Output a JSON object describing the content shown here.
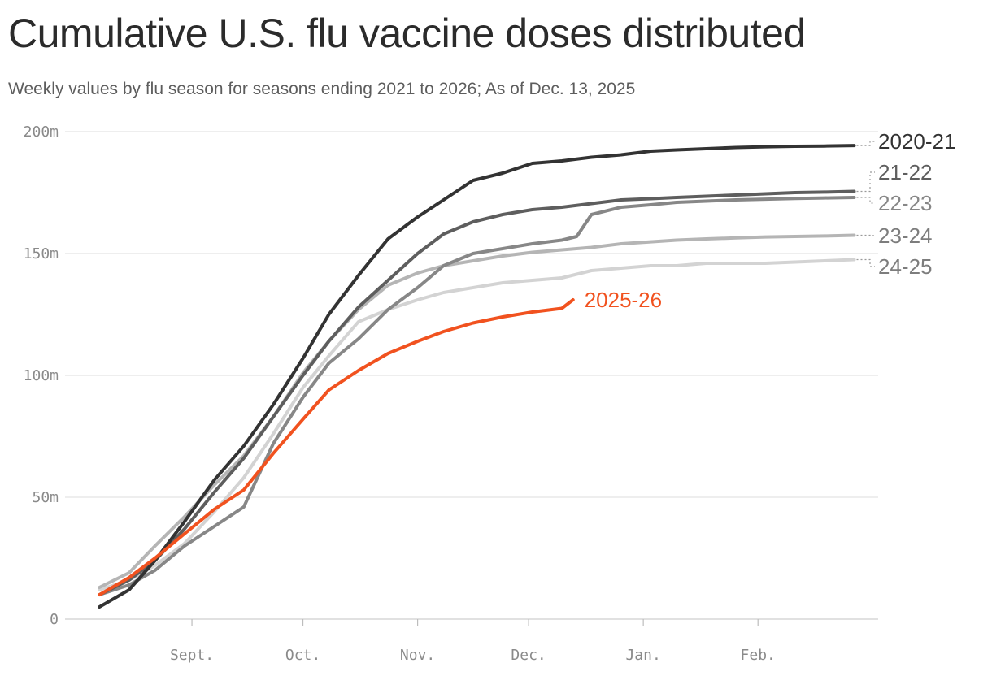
{
  "title": "Cumulative U.S. flu vaccine doses distributed",
  "subtitle": "Weekly values by flu season for seasons ending 2021 to 2026; As of Dec. 13, 2025",
  "chart_data": {
    "type": "line",
    "title": "Cumulative U.S. flu vaccine doses distributed",
    "subtitle": "Weekly values by flu season for seasons ending 2021 to 2026; As of Dec. 13, 2025",
    "xlabel": "",
    "ylabel": "",
    "x_ticks": [
      "Sept.",
      "Oct.",
      "Nov.",
      "Dec.",
      "Jan.",
      "Feb."
    ],
    "x_range": [
      "Aug. 1",
      "Feb. 28"
    ],
    "y_ticks": [
      "0",
      "50m",
      "100m",
      "150m",
      "200m"
    ],
    "y_tick_values": [
      0,
      50,
      100,
      150,
      200
    ],
    "y_unit": "millions of doses",
    "ylim": [
      0,
      200
    ],
    "grid": "horizontal",
    "legend": "direct labels at line ends",
    "series": [
      {
        "name": "24-25",
        "color": "#d3d3d3",
        "x": [
          "Aug. 7",
          "Aug. 15",
          "Aug. 22",
          "Aug. 30",
          "Sept. 7",
          "Sept. 15",
          "Sept. 23",
          "Oct. 1",
          "Oct. 8",
          "Oct. 16",
          "Oct. 24",
          "Nov. 1",
          "Nov. 8",
          "Nov. 16",
          "Nov. 24",
          "Dec. 2",
          "Dec. 10",
          "Dec. 18",
          "Dec. 26",
          "Jan. 3",
          "Jan. 10",
          "Jan. 18",
          "Jan. 26",
          "Feb. 3",
          "Feb. 11",
          "Feb. 19",
          "Feb. 27"
        ],
        "values": [
          12,
          16,
          22,
          31,
          44,
          58,
          76,
          95,
          108,
          122,
          127,
          131,
          134,
          136,
          138,
          139,
          140,
          143,
          144,
          145,
          145,
          146,
          146,
          146,
          146.5,
          147,
          147.5
        ]
      },
      {
        "name": "23-24",
        "color": "#b5b5b5",
        "x": [
          "Aug. 7",
          "Aug. 15",
          "Aug. 22",
          "Aug. 30",
          "Sept. 7",
          "Sept. 15",
          "Sept. 23",
          "Oct. 1",
          "Oct. 8",
          "Oct. 16",
          "Oct. 24",
          "Nov. 1",
          "Nov. 8",
          "Nov. 16",
          "Nov. 24",
          "Dec. 2",
          "Dec. 10",
          "Dec. 18",
          "Dec. 26",
          "Jan. 3",
          "Jan. 10",
          "Jan. 18",
          "Jan. 26",
          "Feb. 3",
          "Feb. 11",
          "Feb. 19",
          "Feb. 27"
        ],
        "values": [
          13,
          19,
          30,
          42,
          55,
          67,
          83,
          101,
          114,
          127,
          137,
          142,
          145,
          147,
          149,
          150.5,
          151.5,
          152.5,
          154,
          154.8,
          155.5,
          156,
          156.4,
          156.8,
          157,
          157.2,
          157.5
        ]
      },
      {
        "name": "22-23",
        "color": "#878787",
        "x": [
          "Aug. 7",
          "Aug. 15",
          "Aug. 22",
          "Aug. 30",
          "Sept. 7",
          "Sept. 15",
          "Sept. 23",
          "Oct. 1",
          "Oct. 8",
          "Oct. 16",
          "Oct. 24",
          "Nov. 1",
          "Nov. 8",
          "Nov. 16",
          "Nov. 24",
          "Dec. 2",
          "Dec. 10",
          "Dec. 14",
          "Dec. 18",
          "Dec. 26",
          "Jan. 3",
          "Jan. 10",
          "Jan. 18",
          "Jan. 26",
          "Feb. 3",
          "Feb. 11",
          "Feb. 19",
          "Feb. 27"
        ],
        "values": [
          10,
          14,
          20,
          30,
          38,
          46,
          72,
          91,
          105,
          115,
          127,
          136,
          145,
          150,
          152,
          154,
          155.5,
          157,
          166,
          169,
          170,
          171,
          171.5,
          172,
          172.3,
          172.6,
          172.8,
          173
        ]
      },
      {
        "name": "21-22",
        "color": "#5e5e5e",
        "x": [
          "Aug. 7",
          "Aug. 15",
          "Aug. 22",
          "Aug. 30",
          "Sept. 7",
          "Sept. 15",
          "Sept. 23",
          "Oct. 1",
          "Oct. 8",
          "Oct. 16",
          "Oct. 24",
          "Nov. 1",
          "Nov. 8",
          "Nov. 16",
          "Nov. 24",
          "Dec. 2",
          "Dec. 10",
          "Dec. 18",
          "Dec. 26",
          "Jan. 3",
          "Jan. 10",
          "Jan. 18",
          "Jan. 26",
          "Feb. 3",
          "Feb. 11",
          "Feb. 19",
          "Feb. 27"
        ],
        "values": [
          10,
          16,
          24,
          37,
          52,
          66,
          83,
          100,
          114,
          128,
          139,
          150,
          158,
          163,
          166,
          168,
          169,
          170.5,
          172,
          172.5,
          173,
          173.5,
          174,
          174.5,
          175,
          175.2,
          175.5
        ]
      },
      {
        "name": "2020-21",
        "color": "#333333",
        "x": [
          "Aug. 7",
          "Aug. 15",
          "Aug. 22",
          "Aug. 30",
          "Sept. 7",
          "Sept. 15",
          "Sept. 23",
          "Oct. 1",
          "Oct. 8",
          "Oct. 16",
          "Oct. 24",
          "Nov. 1",
          "Nov. 8",
          "Nov. 16",
          "Nov. 24",
          "Dec. 2",
          "Dec. 10",
          "Dec. 18",
          "Dec. 26",
          "Jan. 3",
          "Jan. 10",
          "Jan. 18",
          "Jan. 26",
          "Feb. 3",
          "Feb. 11",
          "Feb. 19",
          "Feb. 27"
        ],
        "values": [
          5,
          12,
          24,
          40,
          57,
          71,
          88,
          107,
          125,
          141,
          156,
          165,
          172,
          180,
          183,
          187,
          188,
          189.5,
          190.5,
          192,
          192.5,
          193,
          193.5,
          193.8,
          194,
          194.1,
          194.3
        ]
      },
      {
        "name": "2025-26",
        "color": "#f1521f",
        "x": [
          "Aug. 7",
          "Aug. 15",
          "Aug. 22",
          "Aug. 30",
          "Sept. 7",
          "Sept. 15",
          "Sept. 23",
          "Oct. 1",
          "Oct. 8",
          "Oct. 16",
          "Oct. 24",
          "Nov. 1",
          "Nov. 8",
          "Nov. 16",
          "Nov. 24",
          "Dec. 2",
          "Dec. 10",
          "Dec. 13"
        ],
        "values": [
          10,
          17,
          25,
          35,
          45,
          53,
          68,
          82,
          94,
          102,
          109,
          114,
          118,
          121.5,
          124,
          126,
          127.5,
          131
        ]
      }
    ]
  }
}
